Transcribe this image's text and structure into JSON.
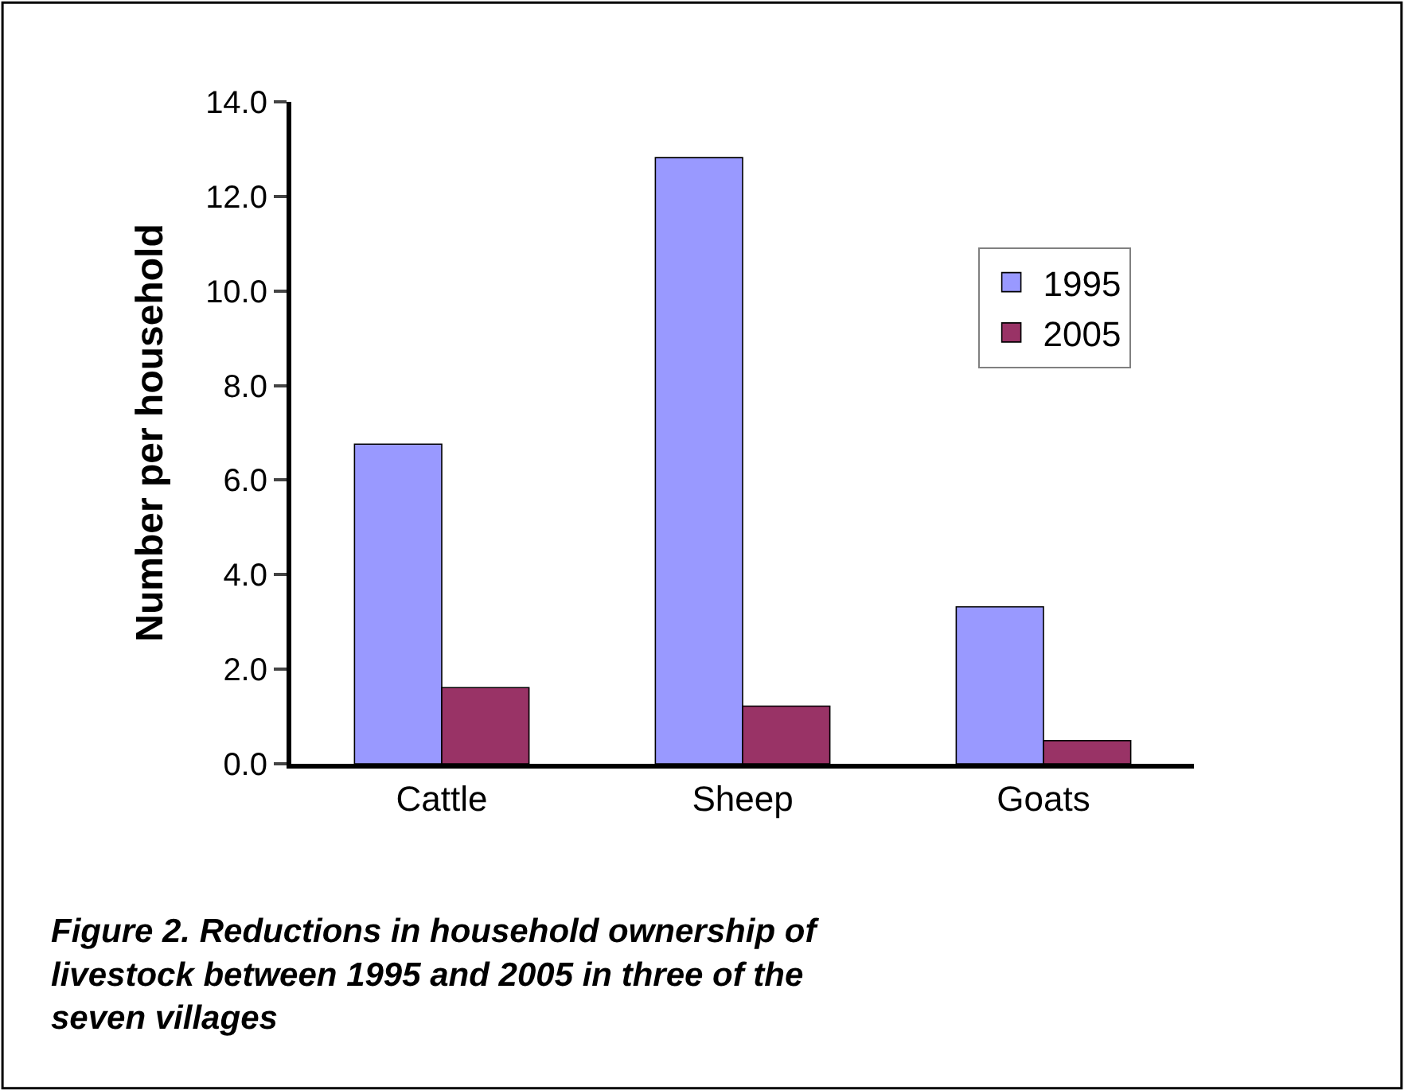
{
  "chart_data": {
    "type": "bar",
    "ylabel": "Number per household",
    "categories": [
      "Cattle",
      "Sheep",
      "Goats"
    ],
    "series": [
      {
        "name": "1995",
        "color": "#9999ff",
        "values": [
          6.76,
          12.82,
          3.32
        ]
      },
      {
        "name": "2005",
        "color": "#993366",
        "values": [
          1.61,
          1.22,
          0.49
        ]
      }
    ],
    "ylim": [
      0,
      14
    ],
    "yticks": [
      {
        "value": 0,
        "label": "0.0"
      },
      {
        "value": 2,
        "label": "2.0"
      },
      {
        "value": 4,
        "label": "4.0"
      },
      {
        "value": 6,
        "label": "6.0"
      },
      {
        "value": 8,
        "label": "8.0"
      },
      {
        "value": 10,
        "label": "10.0"
      },
      {
        "value": 12,
        "label": "12.0"
      },
      {
        "value": 14,
        "label": "14.0"
      }
    ],
    "legend": "top right",
    "annotations": [
      "Figure 2. Reductions in household ownership of livestock between 1995 and 2005 in three of the seven villages"
    ]
  }
}
